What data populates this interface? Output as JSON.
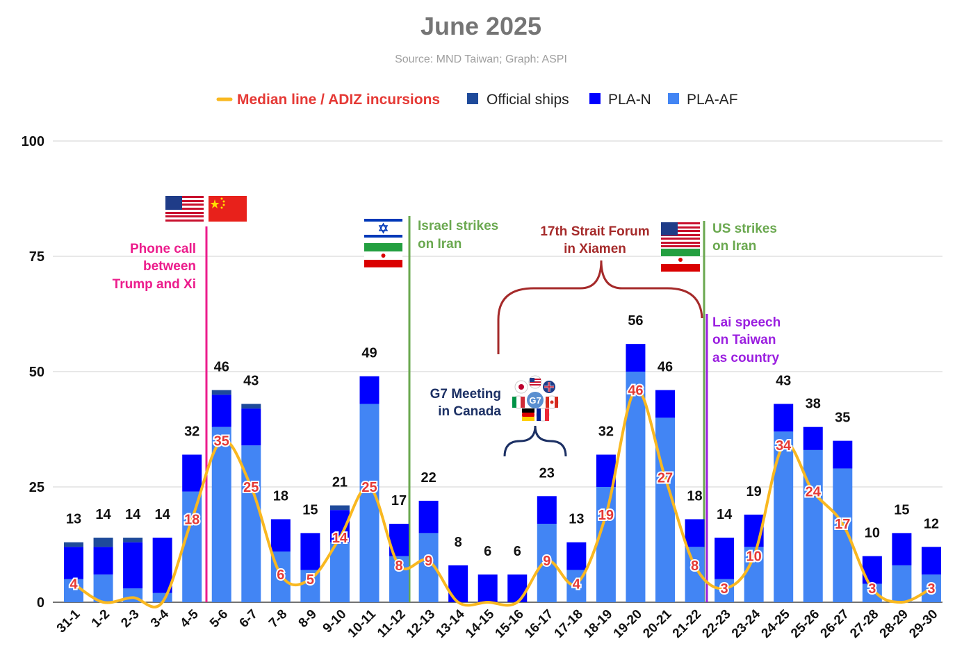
{
  "chart_data": {
    "type": "bar",
    "title": "June 2025",
    "subtitle": "Source: MND Taiwan; Graph: ASPI",
    "ylim": [
      0,
      100
    ],
    "yticks": [
      0,
      25,
      50,
      75,
      100
    ],
    "grid": true,
    "legend_position": "top",
    "categories": [
      "31-1",
      "1-2",
      "2-3",
      "3-4",
      "4-5",
      "5-6",
      "6-7",
      "7-8",
      "8-9",
      "9-10",
      "10-11",
      "11-12",
      "12-13",
      "13-14",
      "14-15",
      "15-16",
      "16-17",
      "17-18",
      "18-19",
      "19-20",
      "20-21",
      "21-22",
      "22-23",
      "23-24",
      "24-25",
      "25-26",
      "26-27",
      "27-28",
      "28-29",
      "29-30"
    ],
    "series": [
      {
        "name": "PLA-AF",
        "type": "bar",
        "color": "#4285f4",
        "values": [
          5,
          6,
          3,
          2,
          24,
          38,
          34,
          11,
          7,
          13,
          43,
          10,
          15,
          0,
          0,
          0,
          17,
          7,
          25,
          50,
          40,
          12,
          5,
          12,
          37,
          33,
          29,
          4,
          8,
          6
        ]
      },
      {
        "name": "PLA-N",
        "type": "bar",
        "color": "#0000ff",
        "values": [
          7,
          6,
          10,
          12,
          8,
          7,
          8,
          7,
          8,
          7,
          6,
          7,
          7,
          8,
          6,
          6,
          6,
          6,
          7,
          6,
          6,
          6,
          9,
          7,
          6,
          5,
          6,
          6,
          7,
          6
        ]
      },
      {
        "name": "Official ships",
        "type": "bar",
        "color": "#1e4a9a",
        "values": [
          1,
          2,
          1,
          0,
          0,
          1,
          1,
          0,
          0,
          1,
          0,
          0,
          0,
          0,
          0,
          0,
          0,
          0,
          0,
          0,
          0,
          0,
          0,
          0,
          0,
          0,
          0,
          0,
          0,
          0
        ]
      },
      {
        "name": "Median line / ADIZ incursions",
        "type": "line",
        "color": "#f9b820",
        "values": [
          4,
          0,
          1,
          0,
          18,
          35,
          25,
          6,
          5,
          14,
          25,
          8,
          9,
          0,
          0,
          0,
          9,
          4,
          19,
          46,
          27,
          8,
          3,
          10,
          34,
          24,
          17,
          3,
          0,
          3
        ]
      }
    ],
    "totals": [
      "13",
      "14",
      "14",
      "14",
      "32",
      "46",
      "43",
      "18",
      "15",
      "21",
      "49",
      "17",
      "22",
      "8",
      "6",
      "6",
      "23",
      "13",
      "32",
      "56",
      "46",
      "18",
      "14",
      "19",
      "43",
      "38",
      "35",
      "10",
      "15",
      "12"
    ],
    "median_labels": [
      "4",
      "",
      "",
      "",
      "18",
      "35",
      "25",
      "6",
      "5",
      "14",
      "25",
      "8",
      "9",
      "",
      "",
      "",
      "9",
      "4",
      "19",
      "46",
      "27",
      "8",
      "3",
      "10",
      "34",
      "24",
      "17",
      "3",
      "",
      "3"
    ],
    "annotations": {
      "trump_xi": [
        "Phone call",
        "between",
        "Trump and Xi"
      ],
      "israel": [
        "Israel strikes",
        "on Iran"
      ],
      "forum": [
        "17th Strait Forum",
        "in Xiamen"
      ],
      "us_strikes": [
        "US strikes",
        "on Iran"
      ],
      "lai": [
        "Lai speech",
        "on Taiwan",
        "as country"
      ],
      "g7": [
        "G7 Meeting",
        "in Canada"
      ],
      "g7_logo_text": "G7"
    },
    "colors": {
      "pink": "#ec1c8c",
      "green": "#6aa84f",
      "darkred": "#a52a2a",
      "purple": "#9b1fe0",
      "navy": "#1c3064"
    }
  }
}
